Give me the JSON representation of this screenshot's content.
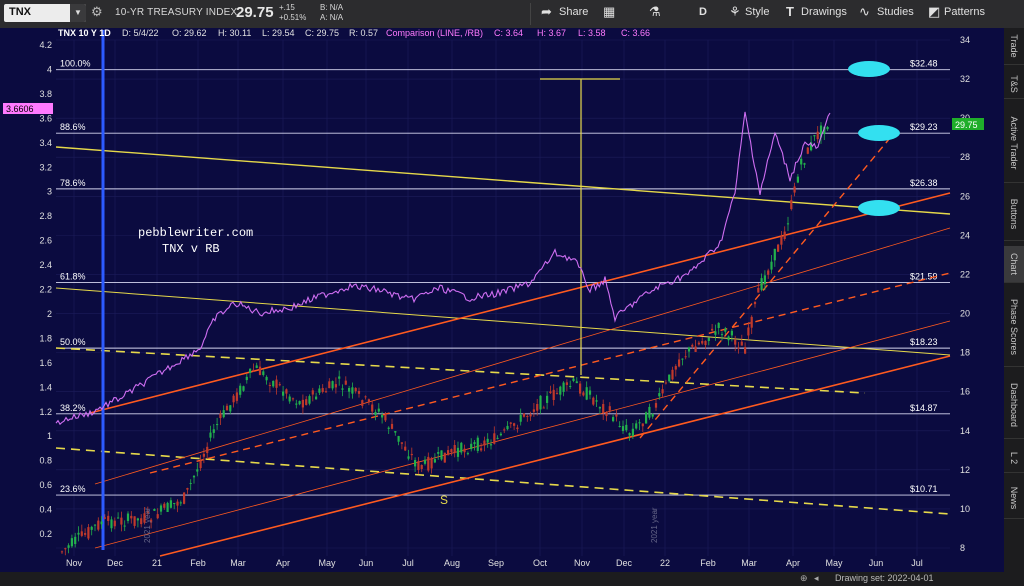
{
  "header": {
    "symbol": "TNX",
    "description": "10-YR TREASURY INDEX",
    "last_price": "29.75",
    "change_net": "+.15",
    "change_pct": "+0.51%",
    "bid": "B: N/A",
    "ask": "A: N/A",
    "toolbar": {
      "share": "Share",
      "period": "D",
      "style": "Style",
      "drawings": "Drawings",
      "studies": "Studies",
      "patterns": "Patterns"
    }
  },
  "chart_header": {
    "symbol": "TNX 10 Y 1D",
    "date": "D: 5/4/22",
    "open": "O: 29.62",
    "high": "H: 30.11",
    "low": "L: 29.54",
    "close": "C: 29.75",
    "range": "R: 0.57",
    "comparison_label": "Comparison (LINE, /RB)",
    "comp_close": "C: 3.64",
    "comp_high": "H: 3.67",
    "comp_low": "L: 3.58",
    "comp_c": "C: 3.66"
  },
  "annotations": {
    "watermark": "pebblewriter.com",
    "subtitle": "TNX v RB",
    "s_marker": "S",
    "year_2021": "2021 year",
    "year_2022": "2021 year"
  },
  "right_tabs": [
    "Trade",
    "T&S",
    "Active Trader",
    "Buttons",
    "Chart",
    "Phase Scores",
    "Dashboard",
    "L 2",
    "News"
  ],
  "drawing_set": "Drawing set: 2022-04-01",
  "colors": {
    "background": "#0b0b40",
    "candle_up": "#22b14c",
    "candle_down": "#c0392b",
    "comparison_line": "#cf6ef2",
    "fib_line": "#d7d7f0",
    "yellow_line": "#e6d94a",
    "red_line": "#ff5a1f",
    "ellipse": "#33e0f0",
    "price_tag": "#1fae2a",
    "comp_tag": "#ff7aff"
  },
  "chart_data": {
    "type": "candlestick",
    "title": "TNX 10 Y 1D",
    "comparison_series": "/RB",
    "left_axis": {
      "min": 0.2,
      "max": 4.2,
      "ticks": [
        "4.2",
        "4",
        "3.8",
        "3.6",
        "3.4",
        "3.2",
        "3",
        "2.8",
        "2.6",
        "2.4",
        "2.2",
        "2",
        "1.8",
        "1.6",
        "1.4",
        "1.2",
        "1",
        "0.8",
        "0.6",
        "0.4",
        "0.2"
      ]
    },
    "right_axis": {
      "min": 8,
      "max": 34,
      "ticks": [
        "34",
        "32",
        "30",
        "28",
        "26",
        "24",
        "22",
        "20",
        "18",
        "16",
        "14",
        "12",
        "10",
        "8"
      ]
    },
    "x_axis_labels": [
      "Nov",
      "Dec",
      "21",
      "Feb",
      "Mar",
      "Apr",
      "May",
      "Jun",
      "Jul",
      "Aug",
      "Sep",
      "Oct",
      "Nov",
      "Dec",
      "22",
      "Feb",
      "Mar",
      "Apr",
      "May",
      "Jun",
      "Jul"
    ],
    "fib_levels": [
      {
        "pct": "100.0%",
        "value": 32.48,
        "label": "$32.48"
      },
      {
        "pct": "88.6%",
        "value": 29.23,
        "label": "$29.23"
      },
      {
        "pct": "78.6%",
        "value": 26.38,
        "label": "$26.38"
      },
      {
        "pct": "61.8%",
        "value": 21.59,
        "label": "$21.59"
      },
      {
        "pct": "50.0%",
        "value": 18.23,
        "label": "$18.23"
      },
      {
        "pct": "38.2%",
        "value": 14.87,
        "label": "$14.87"
      },
      {
        "pct": "23.6%",
        "value": 10.71,
        "label": "$10.71"
      }
    ],
    "last_price_tag": "29.75",
    "comparison_tag": "3.6606"
  }
}
